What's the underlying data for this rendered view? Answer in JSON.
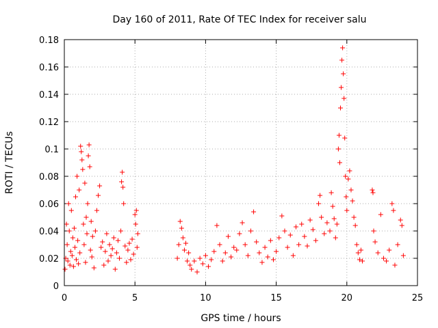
{
  "chart_data": {
    "type": "scatter",
    "title": "Day 160 of 2011, Rate Of TEC Index for receiver salu",
    "xlabel": "GPS time / hours",
    "ylabel": "ROTI / TECUs",
    "xlim": [
      0,
      25
    ],
    "ylim": [
      0,
      0.18
    ],
    "xticks": [
      0,
      5,
      10,
      15,
      20,
      25
    ],
    "yticks": [
      0,
      0.02,
      0.04,
      0.06,
      0.08,
      0.1,
      0.12,
      0.14,
      0.16,
      0.18
    ],
    "xtick_labels": [
      "0",
      "5",
      "10",
      "15",
      "20",
      "25"
    ],
    "ytick_labels": [
      "0",
      "0.02",
      "0.04",
      "0.06",
      "0.08",
      "0.1",
      "0.12",
      "0.14",
      "0.16",
      "0.18"
    ],
    "grid": true,
    "marker": "plus",
    "color": "#ff0000",
    "series": [
      {
        "name": "ROTI",
        "points": [
          [
            0.05,
            0.012
          ],
          [
            0.1,
            0.02
          ],
          [
            0.15,
            0.045
          ],
          [
            0.2,
            0.03
          ],
          [
            0.25,
            0.018
          ],
          [
            0.3,
            0.06
          ],
          [
            0.35,
            0.04
          ],
          [
            0.4,
            0.015
          ],
          [
            0.45,
            0.025
          ],
          [
            0.5,
            0.055
          ],
          [
            0.55,
            0.022
          ],
          [
            0.6,
            0.035
          ],
          [
            0.65,
            0.014
          ],
          [
            0.7,
            0.042
          ],
          [
            0.75,
            0.028
          ],
          [
            0.8,
            0.065
          ],
          [
            0.85,
            0.019
          ],
          [
            0.9,
            0.08
          ],
          [
            0.95,
            0.033
          ],
          [
            1.0,
            0.016
          ],
          [
            1.05,
            0.07
          ],
          [
            1.1,
            0.024
          ],
          [
            1.15,
            0.102
          ],
          [
            1.2,
            0.098
          ],
          [
            1.25,
            0.092
          ],
          [
            1.3,
            0.085
          ],
          [
            1.35,
            0.045
          ],
          [
            1.4,
            0.03
          ],
          [
            1.45,
            0.075
          ],
          [
            1.5,
            0.017
          ],
          [
            1.55,
            0.05
          ],
          [
            1.6,
            0.038
          ],
          [
            1.65,
            0.06
          ],
          [
            1.7,
            0.095
          ],
          [
            1.75,
            0.103
          ],
          [
            1.8,
            0.087
          ],
          [
            1.85,
            0.026
          ],
          [
            1.9,
            0.047
          ],
          [
            1.95,
            0.021
          ],
          [
            2.0,
            0.036
          ],
          [
            2.1,
            0.013
          ],
          [
            2.2,
            0.04
          ],
          [
            2.3,
            0.055
          ],
          [
            2.4,
            0.066
          ],
          [
            2.5,
            0.073
          ],
          [
            2.6,
            0.028
          ],
          [
            2.7,
            0.032
          ],
          [
            2.8,
            0.015
          ],
          [
            2.9,
            0.025
          ],
          [
            3.0,
            0.038
          ],
          [
            3.1,
            0.018
          ],
          [
            3.2,
            0.03
          ],
          [
            3.3,
            0.022
          ],
          [
            3.4,
            0.027
          ],
          [
            3.5,
            0.035
          ],
          [
            3.6,
            0.012
          ],
          [
            3.7,
            0.024
          ],
          [
            3.8,
            0.033
          ],
          [
            3.9,
            0.02
          ],
          [
            4.0,
            0.04
          ],
          [
            4.05,
            0.076
          ],
          [
            4.1,
            0.083
          ],
          [
            4.15,
            0.072
          ],
          [
            4.2,
            0.06
          ],
          [
            4.3,
            0.029
          ],
          [
            4.4,
            0.017
          ],
          [
            4.5,
            0.026
          ],
          [
            4.6,
            0.031
          ],
          [
            4.7,
            0.019
          ],
          [
            4.8,
            0.034
          ],
          [
            4.9,
            0.023
          ],
          [
            5.0,
            0.052
          ],
          [
            5.05,
            0.045
          ],
          [
            5.1,
            0.055
          ],
          [
            5.15,
            0.028
          ],
          [
            5.2,
            0.038
          ],
          [
            8.0,
            0.02
          ],
          [
            8.1,
            0.03
          ],
          [
            8.2,
            0.047
          ],
          [
            8.3,
            0.042
          ],
          [
            8.4,
            0.035
          ],
          [
            8.5,
            0.026
          ],
          [
            8.6,
            0.031
          ],
          [
            8.7,
            0.018
          ],
          [
            8.8,
            0.024
          ],
          [
            8.9,
            0.015
          ],
          [
            9.0,
            0.012
          ],
          [
            9.2,
            0.018
          ],
          [
            9.4,
            0.01
          ],
          [
            9.6,
            0.02
          ],
          [
            9.8,
            0.016
          ],
          [
            10.0,
            0.022
          ],
          [
            10.2,
            0.014
          ],
          [
            10.4,
            0.019
          ],
          [
            10.6,
            0.025
          ],
          [
            10.8,
            0.044
          ],
          [
            11.0,
            0.03
          ],
          [
            11.2,
            0.018
          ],
          [
            11.4,
            0.024
          ],
          [
            11.6,
            0.036
          ],
          [
            11.8,
            0.021
          ],
          [
            12.0,
            0.028
          ],
          [
            12.2,
            0.026
          ],
          [
            12.4,
            0.038
          ],
          [
            12.6,
            0.046
          ],
          [
            12.8,
            0.03
          ],
          [
            13.0,
            0.022
          ],
          [
            13.2,
            0.04
          ],
          [
            13.4,
            0.054
          ],
          [
            13.6,
            0.032
          ],
          [
            13.8,
            0.024
          ],
          [
            14.0,
            0.017
          ],
          [
            14.2,
            0.028
          ],
          [
            14.4,
            0.021
          ],
          [
            14.6,
            0.033
          ],
          [
            14.8,
            0.019
          ],
          [
            15.0,
            0.025
          ],
          [
            15.2,
            0.035
          ],
          [
            15.4,
            0.051
          ],
          [
            15.6,
            0.04
          ],
          [
            15.8,
            0.028
          ],
          [
            16.0,
            0.037
          ],
          [
            16.2,
            0.022
          ],
          [
            16.4,
            0.043
          ],
          [
            16.6,
            0.03
          ],
          [
            16.8,
            0.045
          ],
          [
            17.0,
            0.036
          ],
          [
            17.2,
            0.029
          ],
          [
            17.4,
            0.048
          ],
          [
            17.6,
            0.041
          ],
          [
            17.8,
            0.033
          ],
          [
            18.0,
            0.06
          ],
          [
            18.1,
            0.066
          ],
          [
            18.2,
            0.05
          ],
          [
            18.4,
            0.038
          ],
          [
            18.6,
            0.046
          ],
          [
            18.8,
            0.04
          ],
          [
            18.9,
            0.068
          ],
          [
            19.0,
            0.058
          ],
          [
            19.1,
            0.049
          ],
          [
            19.2,
            0.035
          ],
          [
            19.3,
            0.045
          ],
          [
            19.4,
            0.1
          ],
          [
            19.45,
            0.11
          ],
          [
            19.5,
            0.09
          ],
          [
            19.55,
            0.13
          ],
          [
            19.6,
            0.145
          ],
          [
            19.65,
            0.165
          ],
          [
            19.7,
            0.174
          ],
          [
            19.75,
            0.155
          ],
          [
            19.8,
            0.137
          ],
          [
            19.85,
            0.108
          ],
          [
            19.9,
            0.08
          ],
          [
            19.95,
            0.065
          ],
          [
            20.0,
            0.055
          ],
          [
            20.1,
            0.078
          ],
          [
            20.2,
            0.084
          ],
          [
            20.3,
            0.07
          ],
          [
            20.4,
            0.062
          ],
          [
            20.5,
            0.05
          ],
          [
            20.6,
            0.044
          ],
          [
            20.7,
            0.03
          ],
          [
            20.8,
            0.024
          ],
          [
            20.9,
            0.019
          ],
          [
            21.0,
            0.026
          ],
          [
            21.1,
            0.018
          ],
          [
            21.8,
            0.07
          ],
          [
            21.85,
            0.068
          ],
          [
            21.9,
            0.04
          ],
          [
            22.0,
            0.032
          ],
          [
            22.2,
            0.024
          ],
          [
            22.4,
            0.052
          ],
          [
            22.6,
            0.02
          ],
          [
            22.8,
            0.018
          ],
          [
            23.0,
            0.026
          ],
          [
            23.2,
            0.06
          ],
          [
            23.3,
            0.055
          ],
          [
            23.4,
            0.015
          ],
          [
            23.6,
            0.03
          ],
          [
            23.8,
            0.048
          ],
          [
            23.9,
            0.044
          ],
          [
            24.0,
            0.022
          ]
        ]
      }
    ]
  }
}
